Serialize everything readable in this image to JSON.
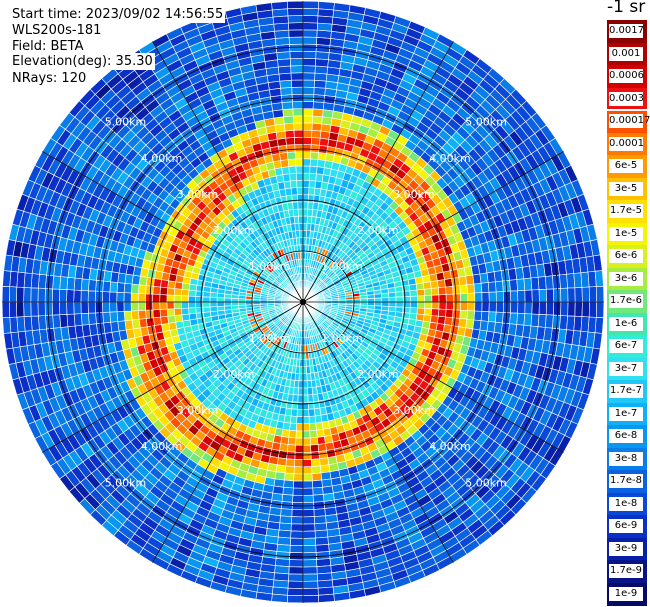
{
  "info": {
    "start_time": "Start time: 2023/09/02 14:56:55",
    "instrument": "WLS200s-181",
    "field": "Field: BETA",
    "elevation": "Elevation(deg): 35.30",
    "nrays": "NRays: 120"
  },
  "colorbar": {
    "unit_label": "-1 sr",
    "bins": [
      {
        "label": "0.0017",
        "color": "#8b0000"
      },
      {
        "label": "0.001",
        "color": "#b00000"
      },
      {
        "label": "0.0006",
        "color": "#d40000"
      },
      {
        "label": "0.0003",
        "color": "#ee1010"
      },
      {
        "label": "0.00017",
        "color": "#ff5000"
      },
      {
        "label": "0.0001",
        "color": "#ff7a00"
      },
      {
        "label": "6e-5",
        "color": "#ff9a00"
      },
      {
        "label": "3e-5",
        "color": "#ffc000"
      },
      {
        "label": "1.7e-5",
        "color": "#ffe000"
      },
      {
        "label": "1e-5",
        "color": "#f5f500"
      },
      {
        "label": "6e-6",
        "color": "#d8f020"
      },
      {
        "label": "3e-6",
        "color": "#a8ec40"
      },
      {
        "label": "1.7e-6",
        "color": "#70e87a"
      },
      {
        "label": "1e-6",
        "color": "#40e8b0"
      },
      {
        "label": "6e-7",
        "color": "#30ecd8"
      },
      {
        "label": "3e-7",
        "color": "#30e0f0"
      },
      {
        "label": "1.7e-7",
        "color": "#20c8f8"
      },
      {
        "label": "1e-7",
        "color": "#10b0f8"
      },
      {
        "label": "6e-8",
        "color": "#0896f0"
      },
      {
        "label": "3e-8",
        "color": "#0a7ee8"
      },
      {
        "label": "1.7e-8",
        "color": "#0a62e0"
      },
      {
        "label": "1e-8",
        "color": "#0a48d8"
      },
      {
        "label": "6e-9",
        "color": "#0a30c8"
      },
      {
        "label": "3e-9",
        "color": "#0820a8"
      },
      {
        "label": "1.7e-9",
        "color": "#061488"
      },
      {
        "label": "1e-9",
        "color": "#040a66"
      }
    ]
  },
  "chart_data": {
    "type": "heatmap",
    "projection": "polar (PPI scan)",
    "field": "BETA",
    "n_rays": 120,
    "range_rings_km": [
      1.0,
      2.0,
      3.0,
      4.0,
      5.0
    ],
    "ring_labels": [
      "1.00km",
      "2.00km",
      "3.00km",
      "4.00km",
      "5.00km"
    ],
    "max_range_km": 5.9,
    "spokes_every_deg": 30,
    "color_scale": "log",
    "value_range": [
      1e-09,
      0.0017
    ],
    "features": {
      "strong_aerosol_ring_km": [
        2.7,
        3.2
      ],
      "strong_ring_peak": 0.0017,
      "inner_clear_background": [
        3e-07,
        1e-06
      ],
      "outer_background": [
        1e-08,
        1e-07
      ]
    }
  }
}
